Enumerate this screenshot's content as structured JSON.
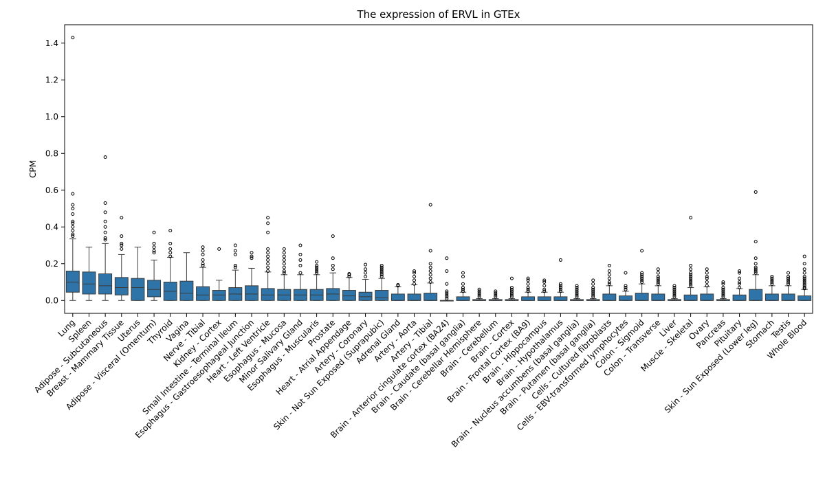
{
  "chart_data": {
    "type": "boxplot",
    "title": "The expression of ERVL in GTEx",
    "xlabel": "",
    "ylabel": "CPM",
    "ylim": [
      -0.07,
      1.5
    ],
    "yticks": [
      "0.0",
      "0.2",
      "0.4",
      "0.6",
      "0.8",
      "1.0",
      "1.2",
      "1.4"
    ],
    "color": "#2f74a8",
    "categories": [
      {
        "name": "Lung",
        "stats": [
          0.0,
          0.045,
          0.1,
          0.16,
          0.335
        ],
        "fliers": [
          0.35,
          0.36,
          0.38,
          0.4,
          0.42,
          0.43,
          0.47,
          0.5,
          0.52,
          0.58,
          1.43
        ]
      },
      {
        "name": "Spleen",
        "stats": [
          0.0,
          0.035,
          0.09,
          0.155,
          0.29
        ],
        "fliers": []
      },
      {
        "name": "Adipose - Subcutaneous",
        "stats": [
          0.0,
          0.035,
          0.08,
          0.145,
          0.31
        ],
        "fliers": [
          0.33,
          0.34,
          0.37,
          0.4,
          0.43,
          0.48,
          0.53,
          0.78
        ]
      },
      {
        "name": "Breast - Mammary Tissue",
        "stats": [
          0.0,
          0.03,
          0.07,
          0.125,
          0.25
        ],
        "fliers": [
          0.28,
          0.3,
          0.31,
          0.35,
          0.45
        ]
      },
      {
        "name": "Uterus",
        "stats": [
          0.0,
          0.0,
          0.07,
          0.12,
          0.29
        ],
        "fliers": []
      },
      {
        "name": "Adipose - Visceral (Omentum)",
        "stats": [
          0.0,
          0.02,
          0.06,
          0.11,
          0.22
        ],
        "fliers": [
          0.26,
          0.27,
          0.29,
          0.31,
          0.37
        ]
      },
      {
        "name": "Thyroid",
        "stats": [
          0.0,
          0.0,
          0.05,
          0.1,
          0.235
        ],
        "fliers": [
          0.24,
          0.26,
          0.28,
          0.31,
          0.38
        ]
      },
      {
        "name": "Vagina",
        "stats": [
          0.0,
          0.0,
          0.04,
          0.105,
          0.26
        ],
        "fliers": []
      },
      {
        "name": "Nerve - Tibial",
        "stats": [
          0.0,
          0.0,
          0.03,
          0.075,
          0.18
        ],
        "fliers": [
          0.19,
          0.2,
          0.22,
          0.25,
          0.27,
          0.29
        ]
      },
      {
        "name": "Kidney - Cortex",
        "stats": [
          0.0,
          0.0,
          0.03,
          0.055,
          0.11
        ],
        "fliers": [
          0.28
        ]
      },
      {
        "name": "Small Intestine - Terminal Ileum",
        "stats": [
          0.0,
          0.0,
          0.035,
          0.07,
          0.165
        ],
        "fliers": [
          0.18,
          0.19,
          0.25,
          0.27,
          0.3
        ]
      },
      {
        "name": "Esophagus - Gastroesophageal Junction",
        "stats": [
          0.0,
          0.0,
          0.035,
          0.08,
          0.175
        ],
        "fliers": [
          0.23,
          0.24,
          0.26
        ]
      },
      {
        "name": "Heart - Left Ventricle",
        "stats": [
          0.0,
          0.0,
          0.03,
          0.065,
          0.155
        ],
        "fliers": [
          0.16,
          0.18,
          0.2,
          0.22,
          0.24,
          0.26,
          0.28,
          0.37,
          0.42,
          0.45
        ]
      },
      {
        "name": "Esophagus - Mucosa",
        "stats": [
          0.0,
          0.0,
          0.03,
          0.06,
          0.14
        ],
        "fliers": [
          0.15,
          0.16,
          0.18,
          0.2,
          0.22,
          0.24,
          0.26,
          0.28
        ]
      },
      {
        "name": "Minor Salivary Gland",
        "stats": [
          0.0,
          0.0,
          0.03,
          0.06,
          0.14
        ],
        "fliers": [
          0.15,
          0.19,
          0.22,
          0.25,
          0.3
        ]
      },
      {
        "name": "Esophagus - Muscularis",
        "stats": [
          0.0,
          0.0,
          0.03,
          0.06,
          0.14
        ],
        "fliers": [
          0.15,
          0.16,
          0.17,
          0.18,
          0.19,
          0.21
        ]
      },
      {
        "name": "Prostate",
        "stats": [
          0.0,
          0.0,
          0.035,
          0.065,
          0.15
        ],
        "fliers": [
          0.17,
          0.19,
          0.23,
          0.35
        ]
      },
      {
        "name": "Heart - Atrial Appendage",
        "stats": [
          0.0,
          0.0,
          0.025,
          0.055,
          0.125
        ],
        "fliers": [
          0.13,
          0.14,
          0.145
        ]
      },
      {
        "name": "Artery - Coronary",
        "stats": [
          0.0,
          0.0,
          0.02,
          0.045,
          0.115
        ],
        "fliers": [
          0.13,
          0.15,
          0.17,
          0.195
        ]
      },
      {
        "name": "Skin - Not Sun Exposed (Suprapubic)",
        "stats": [
          0.0,
          0.0,
          0.015,
          0.055,
          0.12
        ],
        "fliers": [
          0.13,
          0.14,
          0.15,
          0.16,
          0.17,
          0.18,
          0.19
        ]
      },
      {
        "name": "Adrenal Gland",
        "stats": [
          0.0,
          0.0,
          0.0,
          0.035,
          0.075
        ],
        "fliers": [
          0.08,
          0.085
        ]
      },
      {
        "name": "Artery - Aorta",
        "stats": [
          0.0,
          0.0,
          0.0,
          0.035,
          0.085
        ],
        "fliers": [
          0.09,
          0.11,
          0.13,
          0.15,
          0.16
        ]
      },
      {
        "name": "Artery - Tibial",
        "stats": [
          0.0,
          0.0,
          0.0,
          0.04,
          0.095
        ],
        "fliers": [
          0.1,
          0.12,
          0.14,
          0.16,
          0.18,
          0.2,
          0.27,
          0.52
        ]
      },
      {
        "name": "Brain - Anterior cingulate cortex (BA24)",
        "stats": [
          0.0,
          0.0,
          0.0,
          0.0,
          0.0
        ],
        "fliers": [
          0.01,
          0.02,
          0.03,
          0.04,
          0.05,
          0.09,
          0.16,
          0.23
        ]
      },
      {
        "name": "Brain - Caudate (basal ganglia)",
        "stats": [
          0.0,
          0.0,
          0.0,
          0.02,
          0.045
        ],
        "fliers": [
          0.05,
          0.06,
          0.07,
          0.09,
          0.13,
          0.15
        ]
      },
      {
        "name": "Brain - Cerebellar Hemisphere",
        "stats": [
          0.0,
          0.0,
          0.0,
          0.005,
          0.01
        ],
        "fliers": [
          0.02,
          0.03,
          0.04,
          0.05,
          0.06
        ]
      },
      {
        "name": "Brain - Cerebellum",
        "stats": [
          0.0,
          0.0,
          0.0,
          0.005,
          0.01
        ],
        "fliers": [
          0.02,
          0.03,
          0.04,
          0.05
        ]
      },
      {
        "name": "Brain - Cortex",
        "stats": [
          0.0,
          0.0,
          0.0,
          0.005,
          0.01
        ],
        "fliers": [
          0.02,
          0.03,
          0.04,
          0.05,
          0.06,
          0.07,
          0.12
        ]
      },
      {
        "name": "Brain - Frontal Cortex (BA9)",
        "stats": [
          0.0,
          0.0,
          0.0,
          0.02,
          0.045
        ],
        "fliers": [
          0.05,
          0.06,
          0.07,
          0.09,
          0.11,
          0.12
        ]
      },
      {
        "name": "Brain - Hippocampus",
        "stats": [
          0.0,
          0.0,
          0.0,
          0.02,
          0.045
        ],
        "fliers": [
          0.05,
          0.06,
          0.08,
          0.1,
          0.11
        ]
      },
      {
        "name": "Brain - Hypothalamus",
        "stats": [
          0.0,
          0.0,
          0.0,
          0.02,
          0.045
        ],
        "fliers": [
          0.05,
          0.06,
          0.07,
          0.08,
          0.09,
          0.22
        ]
      },
      {
        "name": "Brain - Nucleus accumbens (basal ganglia)",
        "stats": [
          0.0,
          0.0,
          0.0,
          0.005,
          0.01
        ],
        "fliers": [
          0.02,
          0.03,
          0.04,
          0.05,
          0.06,
          0.07,
          0.08
        ]
      },
      {
        "name": "Brain - Putamen (basal ganglia)",
        "stats": [
          0.0,
          0.0,
          0.0,
          0.005,
          0.01
        ],
        "fliers": [
          0.02,
          0.03,
          0.04,
          0.05,
          0.06,
          0.07,
          0.09,
          0.11
        ]
      },
      {
        "name": "Cells - Cultured fibroblasts",
        "stats": [
          0.0,
          0.0,
          0.0,
          0.035,
          0.08
        ],
        "fliers": [
          0.09,
          0.1,
          0.12,
          0.14,
          0.16,
          0.19
        ]
      },
      {
        "name": "Cells - EBV-transformed lymphocytes",
        "stats": [
          0.0,
          0.0,
          0.0,
          0.025,
          0.05
        ],
        "fliers": [
          0.06,
          0.07,
          0.08,
          0.15
        ]
      },
      {
        "name": "Colon - Sigmoid",
        "stats": [
          0.0,
          0.0,
          0.0,
          0.04,
          0.09
        ],
        "fliers": [
          0.1,
          0.11,
          0.12,
          0.13,
          0.14,
          0.15,
          0.27
        ]
      },
      {
        "name": "Colon - Transverse",
        "stats": [
          0.0,
          0.0,
          0.0,
          0.035,
          0.08
        ],
        "fliers": [
          0.09,
          0.1,
          0.11,
          0.12,
          0.13,
          0.15,
          0.17
        ]
      },
      {
        "name": "Liver",
        "stats": [
          0.0,
          0.0,
          0.0,
          0.005,
          0.01
        ],
        "fliers": [
          0.02,
          0.03,
          0.04,
          0.05,
          0.06,
          0.07,
          0.08
        ]
      },
      {
        "name": "Muscle - Skeletal",
        "stats": [
          0.0,
          0.0,
          0.0,
          0.03,
          0.07
        ],
        "fliers": [
          0.08,
          0.09,
          0.1,
          0.11,
          0.12,
          0.13,
          0.14,
          0.15,
          0.17,
          0.19,
          0.45
        ]
      },
      {
        "name": "Ovary",
        "stats": [
          0.0,
          0.0,
          0.0,
          0.035,
          0.075
        ],
        "fliers": [
          0.08,
          0.1,
          0.12,
          0.13,
          0.15,
          0.17
        ]
      },
      {
        "name": "Pancreas",
        "stats": [
          0.0,
          0.0,
          0.0,
          0.005,
          0.01
        ],
        "fliers": [
          0.02,
          0.03,
          0.04,
          0.05,
          0.06,
          0.07,
          0.09,
          0.1
        ]
      },
      {
        "name": "Pituitary",
        "stats": [
          0.0,
          0.0,
          0.0,
          0.03,
          0.065
        ],
        "fliers": [
          0.07,
          0.09,
          0.1,
          0.12,
          0.15,
          0.16
        ]
      },
      {
        "name": "Skin - Sun Exposed (Lower leg)",
        "stats": [
          0.0,
          0.0,
          0.0,
          0.06,
          0.14
        ],
        "fliers": [
          0.15,
          0.16,
          0.17,
          0.18,
          0.2,
          0.23,
          0.32,
          0.59
        ]
      },
      {
        "name": "Stomach",
        "stats": [
          0.0,
          0.0,
          0.0,
          0.035,
          0.08
        ],
        "fliers": [
          0.09,
          0.1,
          0.11,
          0.12,
          0.13
        ]
      },
      {
        "name": "Testis",
        "stats": [
          0.0,
          0.0,
          0.0,
          0.035,
          0.08
        ],
        "fliers": [
          0.09,
          0.1,
          0.11,
          0.12,
          0.13,
          0.15
        ]
      },
      {
        "name": "Whole Blood",
        "stats": [
          0.0,
          0.0,
          0.0,
          0.025,
          0.06
        ],
        "fliers": [
          0.065,
          0.07,
          0.08,
          0.09,
          0.1,
          0.11,
          0.12,
          0.13,
          0.15,
          0.17,
          0.2,
          0.24
        ]
      }
    ]
  }
}
